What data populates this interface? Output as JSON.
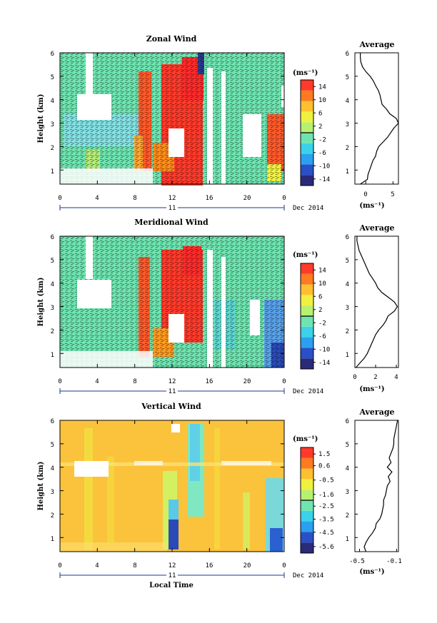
{
  "chart_data": [
    {
      "type": "heatmap",
      "title": "Zonal Wind",
      "ylabel": "Height (km)",
      "x_ticks": [
        "0",
        "4",
        "8",
        "12",
        "16",
        "20",
        "0"
      ],
      "y_ticks": [
        "1",
        "2",
        "3",
        "4",
        "5",
        "6"
      ],
      "xlim": [
        0,
        24
      ],
      "ylim": [
        0.4,
        6
      ],
      "date_day": "11",
      "date_label": "Dec 2014",
      "colorbar": {
        "unit": "(ms⁻¹)",
        "ticks": [
          "14",
          "10",
          "6",
          "2",
          "-2",
          "-6",
          "-10",
          "-14"
        ],
        "range": [
          -16,
          16
        ]
      },
      "average": {
        "title": "Average",
        "xlabel": "(ms⁻¹)",
        "x_ticks": [
          "0",
          "5"
        ],
        "xlim": [
          -2,
          6
        ],
        "heights": [
          0.4,
          0.6,
          0.8,
          1.0,
          1.2,
          1.4,
          1.6,
          1.8,
          2.0,
          2.2,
          2.4,
          2.6,
          2.8,
          3.0,
          3.2,
          3.4,
          3.6,
          3.8,
          4.0,
          4.2,
          4.4,
          4.6,
          4.8,
          5.0,
          5.2,
          5.4,
          5.6,
          5.8,
          6.0
        ],
        "values": [
          -1.0,
          0.3,
          0.4,
          0.7,
          1.0,
          1.3,
          1.8,
          2.0,
          2.4,
          3.2,
          4.0,
          4.6,
          5.2,
          6.0,
          5.6,
          4.4,
          3.8,
          3.0,
          2.8,
          2.6,
          2.3,
          1.8,
          1.4,
          0.8,
          0.0,
          -0.6,
          -0.9,
          -1.0,
          -1.0
        ]
      }
    },
    {
      "type": "heatmap",
      "title": "Meridional Wind",
      "ylabel": "Height (km)",
      "x_ticks": [
        "0",
        "4",
        "8",
        "12",
        "16",
        "20",
        "0"
      ],
      "y_ticks": [
        "1",
        "2",
        "3",
        "4",
        "5",
        "6"
      ],
      "xlim": [
        0,
        24
      ],
      "ylim": [
        0.4,
        6
      ],
      "date_day": "11",
      "date_label": "Dec 2014",
      "colorbar": {
        "unit": "(ms⁻¹)",
        "ticks": [
          "14",
          "10",
          "6",
          "2",
          "-2",
          "-6",
          "-10",
          "-14"
        ],
        "range": [
          -16,
          16
        ]
      },
      "average": {
        "title": "Average",
        "xlabel": "(ms⁻¹)",
        "x_ticks": [
          "0",
          "2",
          "4"
        ],
        "xlim": [
          0,
          4.2
        ],
        "heights": [
          0.4,
          0.6,
          0.8,
          1.0,
          1.2,
          1.4,
          1.6,
          1.8,
          2.0,
          2.2,
          2.4,
          2.6,
          2.8,
          3.0,
          3.2,
          3.4,
          3.6,
          3.8,
          4.0,
          4.2,
          4.4,
          4.6,
          4.8,
          5.0,
          5.2,
          5.4,
          5.6,
          5.8,
          6.0
        ],
        "values": [
          0.1,
          0.5,
          0.9,
          1.2,
          1.4,
          1.6,
          1.8,
          2.0,
          2.3,
          2.7,
          3.0,
          3.2,
          3.8,
          4.1,
          3.8,
          3.2,
          2.6,
          2.2,
          2.0,
          1.7,
          1.4,
          1.2,
          1.0,
          0.8,
          0.6,
          0.4,
          0.3,
          0.2,
          0.2
        ]
      }
    },
    {
      "type": "heatmap",
      "title": "Vertical Wind",
      "ylabel": "Height (km)",
      "xlabel": "Local Time",
      "x_ticks": [
        "0",
        "4",
        "8",
        "12",
        "16",
        "20",
        "0"
      ],
      "y_ticks": [
        "1",
        "2",
        "3",
        "4",
        "5",
        "6"
      ],
      "xlim": [
        0,
        24
      ],
      "ylim": [
        0.4,
        6
      ],
      "date_day": "11",
      "date_label": "Dec 2014",
      "colorbar": {
        "unit": "(ms⁻¹)",
        "ticks": [
          "1.5",
          "0.6",
          "-0.5",
          "-1.6",
          "-2.5",
          "-3.5",
          "-4.5",
          "-5.6"
        ],
        "range": [
          -6.1,
          2.0
        ]
      },
      "average": {
        "title": "Average",
        "xlabel": "(ms⁻¹)",
        "x_ticks": [
          "-0.5",
          "-0.1"
        ],
        "xlim": [
          -0.55,
          -0.08
        ],
        "heights": [
          0.4,
          0.6,
          0.8,
          1.0,
          1.2,
          1.4,
          1.6,
          1.8,
          2.0,
          2.2,
          2.4,
          2.6,
          2.8,
          3.0,
          3.2,
          3.4,
          3.6,
          3.8,
          4.0,
          4.2,
          4.4,
          4.6,
          4.8,
          5.0,
          5.2,
          5.4,
          5.6,
          5.8,
          6.0
        ],
        "values": [
          -0.43,
          -0.45,
          -0.43,
          -0.4,
          -0.36,
          -0.33,
          -0.32,
          -0.28,
          -0.26,
          -0.25,
          -0.24,
          -0.24,
          -0.22,
          -0.21,
          -0.2,
          -0.17,
          -0.19,
          -0.15,
          -0.2,
          -0.16,
          -0.18,
          -0.16,
          -0.14,
          -0.13,
          -0.13,
          -0.12,
          -0.11,
          -0.1,
          -0.09
        ]
      }
    }
  ]
}
